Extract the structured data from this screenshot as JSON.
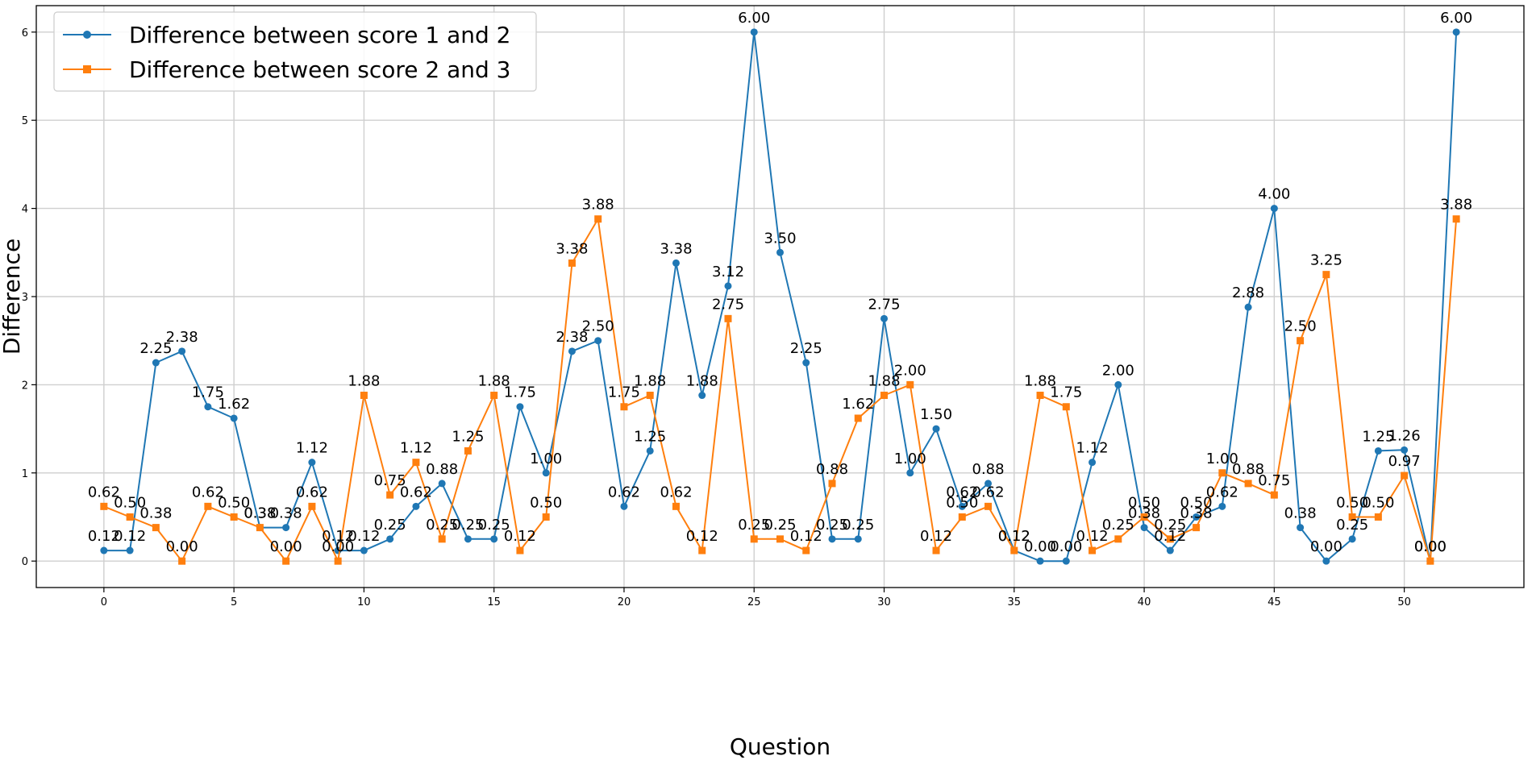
{
  "chart_data": {
    "type": "line",
    "title": "",
    "xlabel": "Question",
    "ylabel": "Difference",
    "xlim": [
      -2.6,
      54.6
    ],
    "ylim": [
      -0.3,
      6.3
    ],
    "xticks": [
      0,
      5,
      10,
      15,
      20,
      25,
      30,
      35,
      40,
      45,
      50
    ],
    "yticks": [
      0,
      1,
      2,
      3,
      4,
      5,
      6
    ],
    "grid": true,
    "legend": "top-left",
    "x": [
      0,
      1,
      2,
      3,
      4,
      5,
      6,
      7,
      8,
      9,
      10,
      11,
      12,
      13,
      14,
      15,
      16,
      17,
      18,
      19,
      20,
      21,
      22,
      23,
      24,
      25,
      26,
      27,
      28,
      29,
      30,
      31,
      32,
      33,
      34,
      35,
      36,
      37,
      38,
      39,
      40,
      41,
      42,
      43,
      44,
      45,
      46,
      47,
      48,
      49,
      50,
      51,
      52
    ],
    "series": [
      {
        "name": "Difference between score 1 and 2",
        "color": "#1f77b4",
        "marker": "circle",
        "values": [
          0.12,
          0.12,
          2.25,
          2.38,
          1.75,
          1.62,
          0.38,
          0.38,
          1.12,
          0.12,
          0.12,
          0.25,
          0.62,
          0.88,
          0.25,
          0.25,
          1.75,
          1.0,
          2.38,
          2.5,
          0.62,
          1.25,
          3.38,
          1.88,
          3.12,
          6.0,
          3.5,
          2.25,
          0.25,
          0.25,
          2.75,
          1.0,
          1.5,
          0.62,
          0.88,
          0.12,
          0.0,
          0.0,
          1.12,
          2.0,
          0.38,
          0.12,
          0.5,
          0.62,
          2.88,
          4.0,
          0.38,
          0.0,
          0.25,
          1.25,
          1.26,
          0.0,
          6.0
        ],
        "labels": [
          "0.12",
          "0.12",
          "2.25",
          "2.38",
          "1.75",
          "1.62",
          "0.38",
          "0.38",
          "1.12",
          "0.12",
          "0.12",
          "0.25",
          "0.62",
          "0.88",
          "0.25",
          "0.25",
          "1.75",
          "1.00",
          "2.38",
          "2.50",
          "0.62",
          "1.25",
          "3.38",
          "1.88",
          "3.12",
          "6.00",
          "3.50",
          "2.25",
          "0.25",
          "0.25",
          "2.75",
          "1.00",
          "1.50",
          "0.62",
          "0.88",
          "0.12",
          "0.00",
          "0.00",
          "1.12",
          "2.00",
          "0.38",
          "0.12",
          "0.50",
          "0.62",
          "2.88",
          "4.00",
          "0.38",
          "0.00",
          "0.25",
          "1.25",
          "1.26",
          "0.00",
          "6.00"
        ]
      },
      {
        "name": "Difference between score 2 and 3",
        "color": "#ff7f0e",
        "marker": "square",
        "values": [
          0.62,
          0.5,
          0.38,
          0.0,
          0.62,
          0.5,
          0.38,
          0.0,
          0.62,
          0.0,
          1.88,
          0.75,
          1.12,
          0.25,
          1.25,
          1.88,
          0.12,
          0.5,
          3.38,
          3.88,
          1.75,
          1.88,
          0.62,
          0.12,
          2.75,
          0.25,
          0.25,
          0.12,
          0.88,
          1.62,
          1.88,
          2.0,
          0.12,
          0.5,
          0.62,
          0.12,
          1.88,
          1.75,
          0.12,
          0.25,
          0.5,
          0.25,
          0.38,
          1.0,
          0.88,
          0.75,
          2.5,
          3.25,
          0.5,
          0.5,
          0.97,
          0.0,
          3.88
        ],
        "labels": [
          "0.62",
          "0.50",
          "0.38",
          "0.00",
          "0.62",
          "0.50",
          "0.38",
          "0.00",
          "0.62",
          "0.00",
          "1.88",
          "0.75",
          "1.12",
          "0.25",
          "1.25",
          "1.88",
          "0.12",
          "0.50",
          "3.38",
          "3.88",
          "1.75",
          "1.88",
          "0.62",
          "0.12",
          "2.75",
          "0.25",
          "0.25",
          "0.12",
          "0.88",
          "1.62",
          "1.88",
          "2.00",
          "0.12",
          "0.50",
          "0.62",
          "0.12",
          "1.88",
          "1.75",
          "0.12",
          "0.25",
          "0.50",
          "0.25",
          "0.38",
          "1.00",
          "0.88",
          "0.75",
          "2.50",
          "3.25",
          "0.50",
          "0.50",
          "0.97",
          "0.00",
          "3.88"
        ]
      }
    ]
  }
}
